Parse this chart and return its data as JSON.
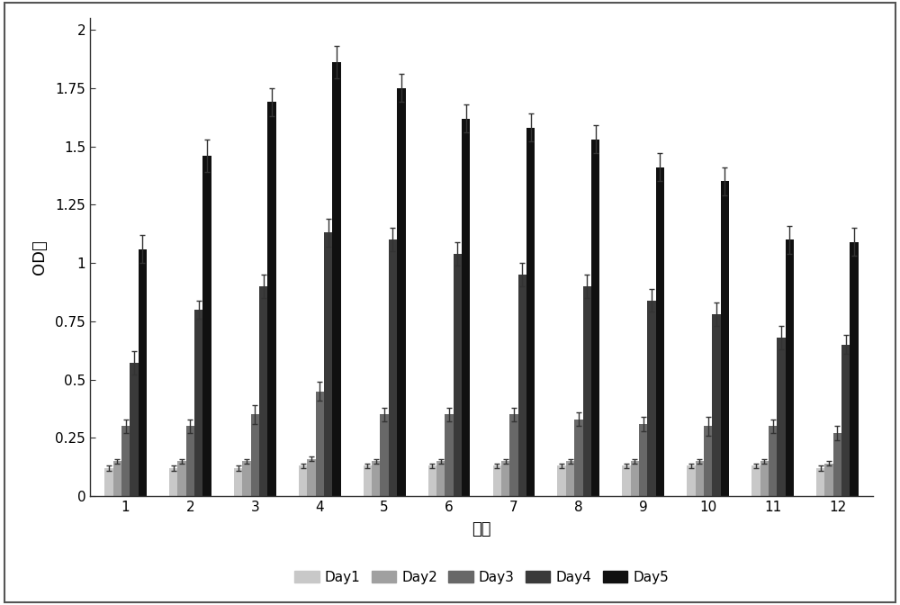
{
  "groups": [
    1,
    2,
    3,
    4,
    5,
    6,
    7,
    8,
    9,
    10,
    11,
    12
  ],
  "days": [
    "Day1",
    "Day2",
    "Day3",
    "Day4",
    "Day5"
  ],
  "values": {
    "Day1": [
      0.12,
      0.12,
      0.12,
      0.13,
      0.13,
      0.13,
      0.13,
      0.13,
      0.13,
      0.13,
      0.13,
      0.12
    ],
    "Day2": [
      0.15,
      0.15,
      0.15,
      0.16,
      0.15,
      0.15,
      0.15,
      0.15,
      0.15,
      0.15,
      0.15,
      0.14
    ],
    "Day3": [
      0.3,
      0.3,
      0.35,
      0.45,
      0.35,
      0.35,
      0.35,
      0.33,
      0.31,
      0.3,
      0.3,
      0.27
    ],
    "Day4": [
      0.57,
      0.8,
      0.9,
      1.13,
      1.1,
      1.04,
      0.95,
      0.9,
      0.84,
      0.78,
      0.68,
      0.65
    ],
    "Day5": [
      1.06,
      1.46,
      1.69,
      1.86,
      1.75,
      1.62,
      1.58,
      1.53,
      1.41,
      1.35,
      1.1,
      1.09
    ]
  },
  "errors": {
    "Day1": [
      0.01,
      0.01,
      0.01,
      0.01,
      0.01,
      0.01,
      0.01,
      0.01,
      0.01,
      0.01,
      0.01,
      0.01
    ],
    "Day2": [
      0.01,
      0.01,
      0.01,
      0.01,
      0.01,
      0.01,
      0.01,
      0.01,
      0.01,
      0.01,
      0.01,
      0.01
    ],
    "Day3": [
      0.03,
      0.03,
      0.04,
      0.04,
      0.03,
      0.03,
      0.03,
      0.03,
      0.03,
      0.04,
      0.03,
      0.03
    ],
    "Day4": [
      0.05,
      0.04,
      0.05,
      0.06,
      0.05,
      0.05,
      0.05,
      0.05,
      0.05,
      0.05,
      0.05,
      0.04
    ],
    "Day5": [
      0.06,
      0.07,
      0.06,
      0.07,
      0.06,
      0.06,
      0.06,
      0.06,
      0.06,
      0.06,
      0.06,
      0.06
    ]
  },
  "colors": {
    "Day1": "#c8c8c8",
    "Day2": "#a0a0a0",
    "Day3": "#686868",
    "Day4": "#3a3a3a",
    "Day5": "#101010"
  },
  "bar_width": 0.13,
  "xlabel": "组别",
  "ylabel": "OD値",
  "ylim": [
    0,
    2.05
  ],
  "ytick_values": [
    0,
    0.25,
    0.5,
    0.75,
    1.0,
    1.25,
    1.5,
    1.75,
    2.0
  ],
  "ytick_labels": [
    "0",
    "0.25",
    "0.5",
    "0.75",
    "1",
    "1.25",
    "1.5",
    "1.75",
    "2"
  ],
  "background_color": "#ffffff",
  "xlabel_fontsize": 13,
  "ylabel_fontsize": 13,
  "tick_fontsize": 11,
  "legend_fontsize": 11,
  "ecolor": "#333333",
  "capsize": 2,
  "border_color": "#555555",
  "border_linewidth": 1.5
}
